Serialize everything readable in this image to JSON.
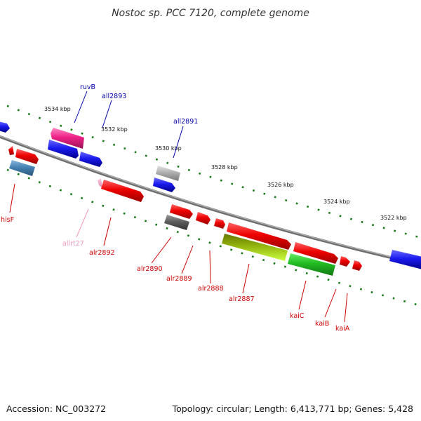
{
  "title": "Nostoc sp. PCC 7120, complete genome",
  "accession": "Accession: NC_003272",
  "summary": "Topology: circular; Length: 6,413,771 bp; Genes: 5,428",
  "scale_labels": [
    "3534 kbp",
    "3532 kbp",
    "3530 kbp",
    "3528 kbp",
    "3526 kbp",
    "3524 kbp",
    "3522 kbp"
  ],
  "genes": [
    {
      "name": "hisF",
      "color": "#cc0000"
    },
    {
      "name": "ruvB",
      "color": "#0000aa"
    },
    {
      "name": "all2893",
      "color": "#0000aa"
    },
    {
      "name": "all2891",
      "color": "#0000aa"
    },
    {
      "name": "allrt27",
      "color": "#ee99bb"
    },
    {
      "name": "alr2892",
      "color": "#cc0000"
    },
    {
      "name": "alr2890",
      "color": "#cc0000"
    },
    {
      "name": "alr2889",
      "color": "#cc0000"
    },
    {
      "name": "alr2888",
      "color": "#cc0000"
    },
    {
      "name": "alr2887",
      "color": "#cc0000"
    },
    {
      "name": "kaiC",
      "color": "#cc0000"
    },
    {
      "name": "kaiB",
      "color": "#cc0000"
    },
    {
      "name": "kaiA",
      "color": "#cc0000"
    }
  ],
  "colors": {
    "backbone": "#808080",
    "ticks": "#1a7a1a",
    "forward_gene": "#ee0000",
    "reverse_gene": "#1a1aee",
    "trna": "#ff3399",
    "pseudo_gray": "#aaaaaa",
    "dark_gray": "#606060",
    "steel_blue": "#4682b4",
    "olive": "#8a9a10",
    "lime": "#aaee22",
    "green": "#22bb22",
    "pink_trna": "#ee99bb"
  }
}
